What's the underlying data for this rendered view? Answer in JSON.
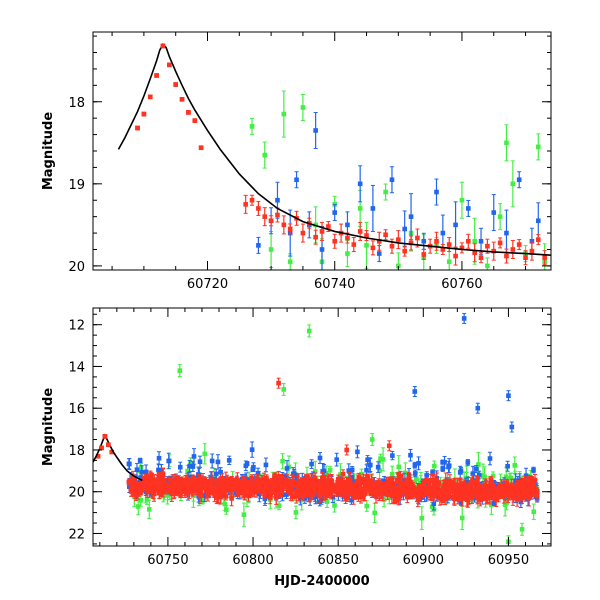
{
  "chart_data": [
    {
      "type": "scatter",
      "panel": "top",
      "xlabel": "",
      "ylabel": "Magnitude",
      "xlim": [
        60702,
        60774
      ],
      "ylim": [
        20.05,
        17.15
      ],
      "y_inverted": true,
      "x_ticks": [
        60720,
        60740,
        60760
      ],
      "x_tick_labels": [
        "60720",
        "60740",
        "60760"
      ],
      "y_ticks": [
        18,
        19,
        20
      ],
      "y_tick_labels": [
        "18",
        "19",
        "20"
      ],
      "model_curve": {
        "name": "model",
        "color": "#000000",
        "x": [
          60706,
          60707,
          60708,
          60709,
          60710,
          60711,
          60712,
          60712.5,
          60713,
          60713.5,
          60714,
          60715,
          60716,
          60717,
          60718,
          60720,
          60722,
          60725,
          60728,
          60731,
          60735,
          60740,
          60745,
          60750,
          60755,
          60760,
          60765,
          60770,
          60774
        ],
        "y": [
          18.58,
          18.44,
          18.28,
          18.12,
          17.93,
          17.72,
          17.5,
          17.37,
          17.3,
          17.34,
          17.45,
          17.63,
          17.8,
          17.96,
          18.1,
          18.35,
          18.58,
          18.88,
          19.12,
          19.3,
          19.46,
          19.58,
          19.66,
          19.72,
          19.76,
          19.8,
          19.83,
          19.85,
          19.87
        ]
      },
      "series": [
        {
          "name": "red",
          "color": "#ff3322",
          "x": [
            60709,
            60710,
            60711,
            60712,
            60713,
            60714,
            60715,
            60716,
            60717,
            60718,
            60719,
            60726,
            60727,
            60728,
            60729,
            60730,
            60731,
            60732,
            60733,
            60734,
            60735,
            60736,
            60737,
            60738,
            60739,
            60740,
            60741,
            60742,
            60743,
            60744,
            60745,
            60746,
            60747,
            60748,
            60749,
            60750,
            60751,
            60752,
            60753,
            60754,
            60755,
            60756,
            60757,
            60758,
            60759,
            60760,
            60761,
            60762,
            60763,
            60764,
            60765,
            60766,
            60767,
            60768,
            60769,
            60770,
            60771,
            60772,
            60773
          ],
          "y": [
            18.32,
            18.15,
            17.94,
            17.68,
            17.32,
            17.55,
            17.79,
            17.97,
            18.13,
            18.23,
            18.56,
            19.25,
            19.2,
            19.3,
            19.4,
            19.45,
            19.38,
            19.5,
            19.55,
            19.42,
            19.6,
            19.48,
            19.65,
            19.58,
            19.52,
            19.7,
            19.6,
            19.66,
            19.74,
            19.58,
            19.63,
            19.78,
            19.7,
            19.62,
            19.76,
            19.68,
            19.82,
            19.72,
            19.66,
            19.86,
            19.76,
            19.7,
            19.8,
            19.74,
            19.88,
            19.78,
            19.7,
            19.84,
            19.9,
            19.76,
            19.82,
            19.72,
            19.88,
            19.8,
            19.74,
            19.9,
            19.82,
            19.68,
            19.9
          ]
        },
        {
          "name": "green",
          "color": "#44ee44",
          "x": [
            60727,
            60729,
            60730,
            60732,
            60733,
            60735,
            60737,
            60738,
            60740,
            60742,
            60744,
            60745,
            60748,
            60750,
            60752,
            60754,
            60756,
            60758,
            60760,
            60762,
            60764,
            60766,
            60767,
            60768,
            60770,
            60772,
            60773
          ],
          "y": [
            18.3,
            18.65,
            19.8,
            18.15,
            19.95,
            18.07,
            19.5,
            19.95,
            19.25,
            19.85,
            19.3,
            19.75,
            19.1,
            20.0,
            19.6,
            19.9,
            19.75,
            19.95,
            19.2,
            19.7,
            20.0,
            19.4,
            18.5,
            19.0,
            19.85,
            18.55,
            19.95
          ]
        },
        {
          "name": "blue",
          "color": "#2266ee",
          "x": [
            60728,
            60730,
            60731,
            60733,
            60734,
            60736,
            60737,
            60738,
            60740,
            60742,
            60744,
            60746,
            60747,
            60749,
            60751,
            60752,
            60754,
            60756,
            60757,
            60759,
            60761,
            60763,
            60765,
            60767,
            60769,
            60771,
            60772
          ],
          "y": [
            19.75,
            19.45,
            19.2,
            19.6,
            18.95,
            19.5,
            18.35,
            19.8,
            19.35,
            19.5,
            19.0,
            19.3,
            19.85,
            18.95,
            19.55,
            19.4,
            19.7,
            19.1,
            19.6,
            19.5,
            19.3,
            19.7,
            19.35,
            19.6,
            18.95,
            19.7,
            19.45
          ]
        }
      ]
    },
    {
      "type": "scatter",
      "panel": "bottom",
      "xlabel": "HJD-2400000",
      "ylabel": "Magnitude",
      "xlim": [
        60706,
        60975
      ],
      "ylim": [
        22.6,
        11.2
      ],
      "y_inverted": true,
      "x_ticks": [
        60750,
        60800,
        60850,
        60900,
        60950
      ],
      "x_tick_labels": [
        "60750",
        "60800",
        "60850",
        "60900",
        "60950"
      ],
      "y_ticks": [
        12,
        14,
        16,
        18,
        20,
        22
      ],
      "y_tick_labels": [
        "12",
        "14",
        "16",
        "18",
        "20",
        "22"
      ],
      "model_curve": {
        "name": "model",
        "color": "#000000",
        "x": [
          60706,
          60708,
          60710,
          60712,
          60713,
          60714,
          60716,
          60718,
          60720,
          60723,
          60726,
          60730,
          60735
        ],
        "y": [
          18.58,
          18.28,
          17.93,
          17.5,
          17.3,
          17.45,
          17.8,
          18.1,
          18.35,
          18.7,
          19.0,
          19.25,
          19.46
        ]
      },
      "outliers": {
        "green_x": [
          60757,
          60833,
          60818,
          60870,
          60950,
          60958
        ],
        "green_y": [
          14.2,
          12.3,
          15.1,
          17.5,
          22.4,
          21.8
        ],
        "red_x": [
          60815,
          60855,
          60880
        ],
        "red_y": [
          14.8,
          18.0,
          17.8
        ],
        "blue_x": [
          60895,
          60924,
          60932,
          60950,
          60952
        ],
        "blue_y": [
          15.2,
          11.7,
          16.0,
          15.4,
          16.9
        ]
      }
    }
  ]
}
